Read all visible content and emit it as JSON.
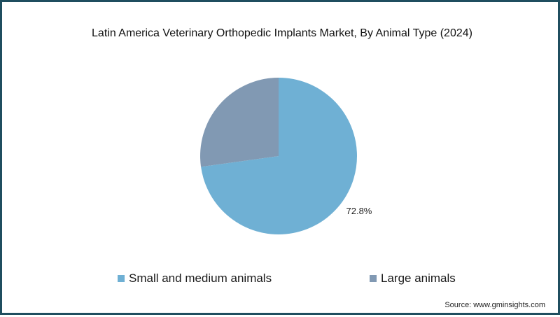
{
  "chart_data": {
    "type": "pie",
    "title": "Latin America Veterinary Orthopedic Implants Market, By Animal Type (2024)",
    "slices": [
      {
        "label": "Small and medium animals",
        "value": 72.8,
        "display": "72.8%",
        "color": "#6fb0d4"
      },
      {
        "label": "Large animals",
        "value": 27.2,
        "display": "",
        "color": "#8199b3"
      }
    ],
    "legend_position": "bottom"
  },
  "source": "Source: www.gminsights.com"
}
